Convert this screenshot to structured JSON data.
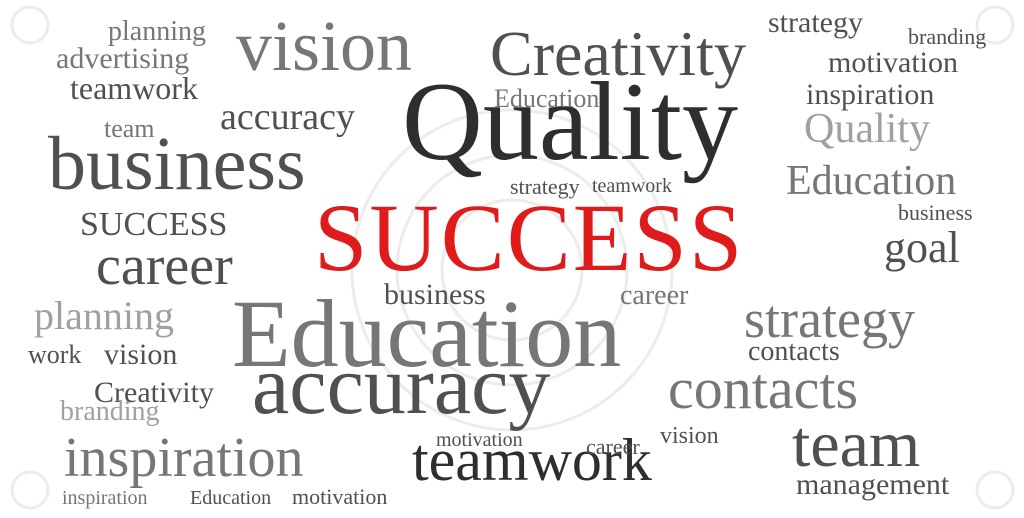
{
  "cloud": {
    "headline": "SUCCESS",
    "accent_color": "#e01b1b",
    "text_colors": [
      "#2e2e2e",
      "#505050",
      "#767676",
      "#a0a0a0"
    ],
    "words": {
      "quality_big": "Quality",
      "education_big": "Education",
      "accuracy_big": "accuracy",
      "business_big": "business",
      "vision_big": "vision",
      "creativity_big": "Creativity",
      "inspiration_big": "inspiration",
      "teamwork_big": "teamwork",
      "team_big": "team",
      "contacts_big": "contacts",
      "strategy_big": "strategy",
      "career_big": "career",
      "planning_big": "planning",
      "goal_big": "goal",
      "management_big": "management",
      "branding_mid": "branding",
      "motivation_mid": "motivation",
      "success_small": "SUCCESS",
      "advertising_mid": "advertising",
      "work": "work",
      "quality_mid": "Quality",
      "education_mid": "Education",
      "accuracy_mid": "accuracy"
    }
  }
}
